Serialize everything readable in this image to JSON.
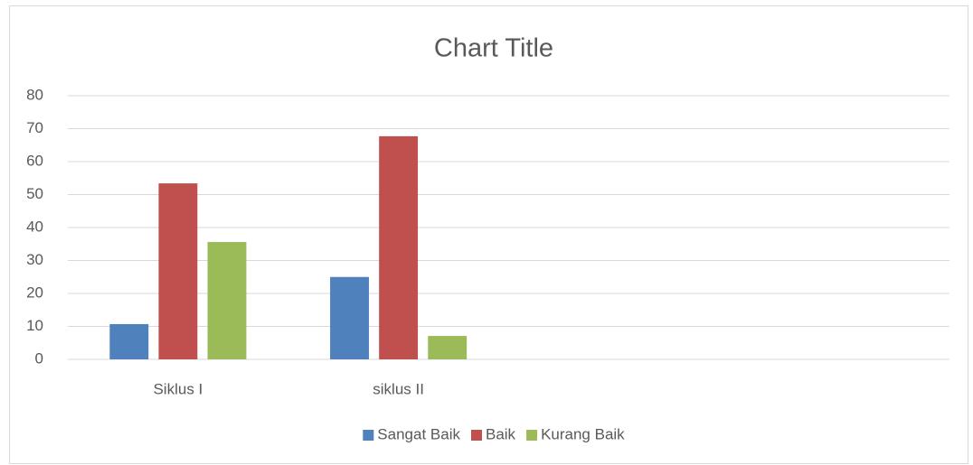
{
  "chart_data": {
    "type": "bar",
    "title": "Chart Title",
    "categories": [
      "Siklus I",
      "siklus II",
      null,
      null
    ],
    "series": [
      {
        "name": "Sangat Baik",
        "color": "#4f81bd",
        "values": [
          10.7,
          25,
          null,
          null
        ]
      },
      {
        "name": "Baik",
        "color": "#c0504d",
        "values": [
          53.4,
          67.7,
          null,
          null
        ]
      },
      {
        "name": "Kurang Baik",
        "color": "#9bbb59",
        "values": [
          35.6,
          7.1,
          null,
          null
        ]
      }
    ],
    "ylim": [
      0,
      80
    ],
    "yticks": [
      0,
      10,
      20,
      30,
      40,
      50,
      60,
      70,
      80
    ],
    "grid": true,
    "legend": "bottom"
  }
}
